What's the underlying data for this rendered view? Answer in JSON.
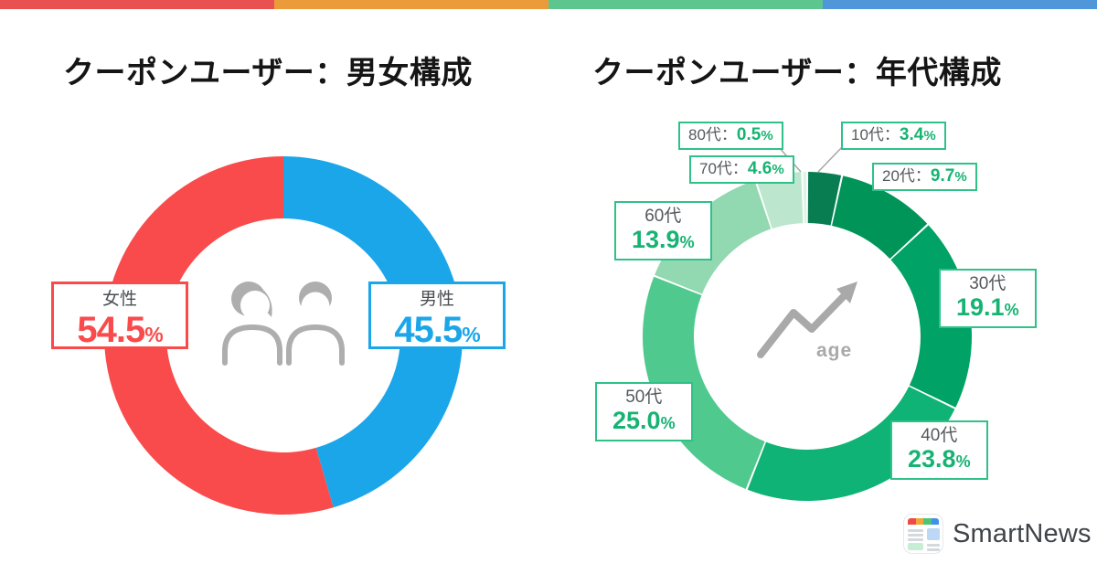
{
  "top_bar": {
    "colors": [
      "#E8514F",
      "#EC9B3B",
      "#5CC68E",
      "#4F97D9"
    ]
  },
  "chart_data": [
    {
      "type": "pie",
      "subtype": "donut",
      "title": "クーポンユーザー：男女構成",
      "categories": [
        "男性",
        "女性"
      ],
      "values": [
        45.5,
        54.5
      ],
      "colors": [
        "#1BA6E9",
        "#F94B4B"
      ],
      "unit": "%",
      "start_angle": "top",
      "direction": "clockwise",
      "legend_position": "side-boxes",
      "center_icon": "male-female-figures"
    },
    {
      "type": "pie",
      "subtype": "donut",
      "title": "クーポンユーザー：年代構成",
      "categories": [
        "10代",
        "20代",
        "30代",
        "40代",
        "50代",
        "60代",
        "70代",
        "80代"
      ],
      "values": [
        3.4,
        9.7,
        19.1,
        23.8,
        25.0,
        13.9,
        4.6,
        0.5
      ],
      "colors": [
        "#087D52",
        "#009459",
        "#00A266",
        "#0FB375",
        "#4FC98E",
        "#92D8B1",
        "#BCE7CE",
        "#DFF2E6"
      ],
      "unit": "%",
      "start_angle": "top",
      "direction": "clockwise",
      "legend_position": "callout-boxes",
      "center_icon": "age-trend-arrow",
      "center_label": "age"
    }
  ],
  "gender_chart": {
    "labels": [
      {
        "label": "男性",
        "value": "45.5"
      },
      {
        "label": "女性",
        "value": "54.5"
      }
    ],
    "unit": "%"
  },
  "age_chart": {
    "separator": "：",
    "unit": "%",
    "center_label": "age",
    "labels": [
      {
        "label": "10代",
        "value": "3.4"
      },
      {
        "label": "20代",
        "value": "9.7"
      },
      {
        "label": "30代",
        "value": "19.1"
      },
      {
        "label": "40代",
        "value": "23.8"
      },
      {
        "label": "50代",
        "value": "25.0"
      },
      {
        "label": "60代",
        "value": "13.9"
      },
      {
        "label": "70代",
        "value": "4.6"
      },
      {
        "label": "80代",
        "value": "0.5"
      }
    ]
  },
  "footer": {
    "brand": "SmartNews",
    "icon": "smartnews-app-icon",
    "icon_colors": [
      "#ED4C44",
      "#F2A63A",
      "#4DC479",
      "#4290E8"
    ]
  }
}
